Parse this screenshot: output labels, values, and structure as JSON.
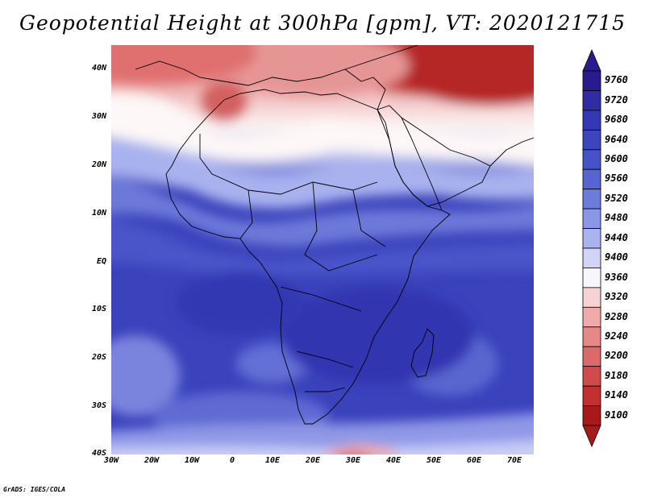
{
  "title": "Geopotential Height at 300hPa [gpm], VT: 2020121715",
  "credit": "GrADS: IGES/COLA",
  "lat_labels": [
    "40N",
    "30N",
    "20N",
    "10N",
    "EQ",
    "10S",
    "20S",
    "30S",
    "40S"
  ],
  "lon_labels": [
    "30W",
    "20W",
    "10W",
    "0",
    "10E",
    "20E",
    "30E",
    "40E",
    "50E",
    "60E",
    "70E"
  ],
  "colorbar": {
    "labels": [
      "9760",
      "9720",
      "9680",
      "9640",
      "9600",
      "9560",
      "9520",
      "9480",
      "9440",
      "9400",
      "9360",
      "9320",
      "9280",
      "9240",
      "9200",
      "9180",
      "9140",
      "9100"
    ],
    "colors": [
      "#2a1a8f",
      "#2f2ca4",
      "#3438b6",
      "#3b45c0",
      "#4652c8",
      "#5765d2",
      "#6d7bdc",
      "#8b97e6",
      "#aab3ef",
      "#d0d5f6",
      "#f7f7fb",
      "#f7d2d2",
      "#f0aaaa",
      "#e68888",
      "#dc6a6a",
      "#d14b4b",
      "#c23030",
      "#a81a1a"
    ]
  },
  "map": {
    "variable": "Geopotential Height",
    "level": "300hPa",
    "units": "gpm",
    "valid_time": "2020121715",
    "domain_lon": [
      -30,
      75
    ],
    "domain_lat": [
      -40,
      45
    ]
  }
}
